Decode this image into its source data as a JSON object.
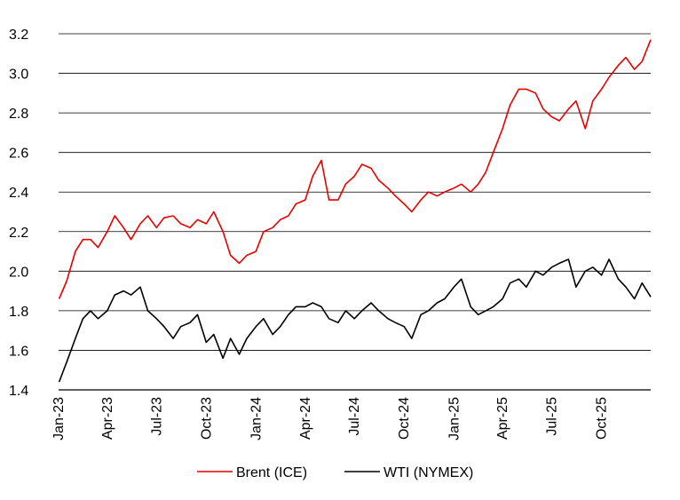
{
  "chart_data": {
    "type": "line",
    "title": "",
    "xlabel": "",
    "ylabel": "",
    "ylim": [
      1.4,
      3.2
    ],
    "yticks": [
      1.4,
      1.6,
      1.8,
      2.0,
      2.2,
      2.4,
      2.6,
      2.8,
      3.0,
      3.2
    ],
    "ytick_labels": [
      "1.4",
      "1.6",
      "1.8",
      "2.0",
      "2.2",
      "2.4",
      "2.6",
      "2.8",
      "3.0",
      "3.2"
    ],
    "xlim": [
      "2023-01-01",
      "2025-12-31"
    ],
    "xticks": [
      "2023-01-01",
      "2023-04-01",
      "2023-07-01",
      "2023-10-01",
      "2024-01-01",
      "2024-04-01",
      "2024-07-01",
      "2024-10-01",
      "2025-01-01",
      "2025-04-01",
      "2025-07-01",
      "2025-10-01"
    ],
    "xtick_labels": [
      "Jan-23",
      "Apr-23",
      "Jul-23",
      "Oct-23",
      "Jan-24",
      "Apr-24",
      "Jul-24",
      "Oct-24",
      "Jan-25",
      "Apr-25",
      "Jul-25",
      "Oct-25"
    ],
    "grid": "horizontal",
    "legend_position": "bottom",
    "series": [
      {
        "name": "Brent (ICE)",
        "color": "#e60000",
        "x": [
          "2023-01-02",
          "2023-01-16",
          "2023-02-01",
          "2023-02-15",
          "2023-03-01",
          "2023-03-15",
          "2023-04-01",
          "2023-04-15",
          "2023-05-01",
          "2023-05-15",
          "2023-06-01",
          "2023-06-15",
          "2023-07-01",
          "2023-07-15",
          "2023-08-01",
          "2023-08-15",
          "2023-09-01",
          "2023-09-15",
          "2023-10-01",
          "2023-10-15",
          "2023-11-01",
          "2023-11-15",
          "2023-12-01",
          "2023-12-15",
          "2024-01-01",
          "2024-01-15",
          "2024-02-01",
          "2024-02-15",
          "2024-03-01",
          "2024-03-15",
          "2024-04-01",
          "2024-04-15",
          "2024-05-01",
          "2024-05-15",
          "2024-06-01",
          "2024-06-15",
          "2024-07-01",
          "2024-07-15",
          "2024-08-01",
          "2024-08-15",
          "2024-09-01",
          "2024-09-15",
          "2024-10-01",
          "2024-10-15",
          "2024-11-01",
          "2024-11-15",
          "2024-12-01",
          "2024-12-15",
          "2025-01-01",
          "2025-01-15",
          "2025-02-01",
          "2025-02-15",
          "2025-03-01",
          "2025-03-15",
          "2025-04-01",
          "2025-04-15",
          "2025-05-01",
          "2025-05-15",
          "2025-06-01",
          "2025-06-15",
          "2025-07-01",
          "2025-07-15",
          "2025-08-01",
          "2025-08-15",
          "2025-09-01",
          "2025-09-15",
          "2025-10-01",
          "2025-10-15",
          "2025-11-01",
          "2025-11-15",
          "2025-12-01",
          "2025-12-15",
          "2025-12-31"
        ],
        "values": [
          1.86,
          1.95,
          2.1,
          2.16,
          2.16,
          2.12,
          2.2,
          2.28,
          2.22,
          2.16,
          2.24,
          2.28,
          2.22,
          2.27,
          2.28,
          2.24,
          2.22,
          2.26,
          2.24,
          2.3,
          2.2,
          2.08,
          2.04,
          2.08,
          2.1,
          2.2,
          2.22,
          2.26,
          2.28,
          2.34,
          2.36,
          2.48,
          2.56,
          2.36,
          2.36,
          2.44,
          2.48,
          2.54,
          2.52,
          2.46,
          2.42,
          2.38,
          2.34,
          2.3,
          2.36,
          2.4,
          2.38,
          2.4,
          2.42,
          2.44,
          2.4,
          2.44,
          2.5,
          2.6,
          2.72,
          2.84,
          2.92,
          2.92,
          2.9,
          2.82,
          2.78,
          2.76,
          2.82,
          2.86,
          2.72,
          2.86,
          2.92,
          2.98,
          3.04,
          3.08,
          3.02,
          3.06,
          3.17
        ]
      },
      {
        "name": "WTI (NYMEX)",
        "color": "#000000",
        "x": [
          "2023-01-02",
          "2023-01-16",
          "2023-02-01",
          "2023-02-15",
          "2023-03-01",
          "2023-03-15",
          "2023-04-01",
          "2023-04-15",
          "2023-05-01",
          "2023-05-15",
          "2023-06-01",
          "2023-06-15",
          "2023-07-01",
          "2023-07-15",
          "2023-08-01",
          "2023-08-15",
          "2023-09-01",
          "2023-09-15",
          "2023-10-01",
          "2023-10-15",
          "2023-11-01",
          "2023-11-15",
          "2023-12-01",
          "2023-12-15",
          "2024-01-01",
          "2024-01-15",
          "2024-02-01",
          "2024-02-15",
          "2024-03-01",
          "2024-03-15",
          "2024-04-01",
          "2024-04-15",
          "2024-05-01",
          "2024-05-15",
          "2024-06-01",
          "2024-06-15",
          "2024-07-01",
          "2024-07-15",
          "2024-08-01",
          "2024-08-15",
          "2024-09-01",
          "2024-09-15",
          "2024-10-01",
          "2024-10-15",
          "2024-11-01",
          "2024-11-15",
          "2024-12-01",
          "2024-12-15",
          "2025-01-01",
          "2025-01-15",
          "2025-02-01",
          "2025-02-15",
          "2025-03-01",
          "2025-03-15",
          "2025-04-01",
          "2025-04-15",
          "2025-05-01",
          "2025-05-15",
          "2025-06-01",
          "2025-06-15",
          "2025-07-01",
          "2025-07-15",
          "2025-08-01",
          "2025-08-15",
          "2025-09-01",
          "2025-09-15",
          "2025-10-01",
          "2025-10-15",
          "2025-11-01",
          "2025-11-15",
          "2025-12-01",
          "2025-12-15",
          "2025-12-31"
        ],
        "values": [
          1.44,
          1.54,
          1.66,
          1.76,
          1.8,
          1.76,
          1.8,
          1.88,
          1.9,
          1.88,
          1.92,
          1.8,
          1.76,
          1.72,
          1.66,
          1.72,
          1.74,
          1.78,
          1.64,
          1.68,
          1.56,
          1.66,
          1.58,
          1.66,
          1.72,
          1.76,
          1.68,
          1.72,
          1.78,
          1.82,
          1.82,
          1.84,
          1.82,
          1.76,
          1.74,
          1.8,
          1.76,
          1.8,
          1.84,
          1.8,
          1.76,
          1.74,
          1.72,
          1.66,
          1.78,
          1.8,
          1.84,
          1.86,
          1.92,
          1.96,
          1.82,
          1.78,
          1.8,
          1.82,
          1.86,
          1.94,
          1.96,
          1.92,
          2.0,
          1.98,
          2.02,
          2.04,
          2.06,
          1.92,
          2.0,
          2.02,
          1.98,
          2.06,
          1.96,
          1.92,
          1.86,
          1.94,
          1.87
        ]
      }
    ]
  }
}
